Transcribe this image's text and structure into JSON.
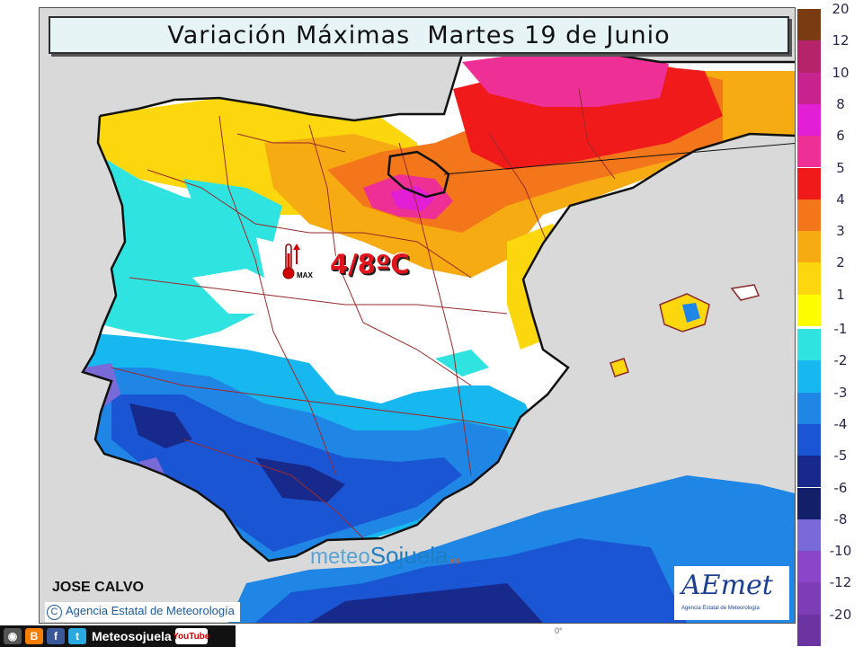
{
  "title": "Variación Máximas  Martes 19 de Junio",
  "anomaly_label": "4/8ºC",
  "thermometer_max_label": "MAX",
  "author": "JOSE CALVO",
  "agency_credit": "Agencia Estatal de Meteorología",
  "copyright_symbol": "C",
  "aemet_logo": {
    "wordmark": "AEmet",
    "caption": "Agencia Estatal de Meteorología"
  },
  "watermark": {
    "part1": "meteo",
    "part2": "Sojuela",
    "suffix": ".es"
  },
  "social_bar": {
    "handle": "Meteosojuela",
    "youtube": "YouTube",
    "icons": [
      "camera-icon",
      "blogger-icon",
      "facebook-icon",
      "twitter-icon",
      "youtube-icon"
    ]
  },
  "degree_mark": "0°",
  "legend": {
    "positive": [
      {
        "label": "20",
        "color": "#7b3b12"
      },
      {
        "label": "12",
        "color": "#b5236a"
      },
      {
        "label": "10",
        "color": "#c8248f"
      },
      {
        "label": "8",
        "color": "#e21fd5"
      },
      {
        "label": "6",
        "color": "#ee2f95"
      },
      {
        "label": "5",
        "color": "#f11a1a"
      },
      {
        "label": "4",
        "color": "#f4761a"
      },
      {
        "label": "3",
        "color": "#f6ab12"
      },
      {
        "label": "2",
        "color": "#fdd70d"
      },
      {
        "label": "1",
        "color": "#fffe00"
      }
    ],
    "negative": [
      {
        "label": "-1",
        "color": "#2fe3e0"
      },
      {
        "label": "-2",
        "color": "#17b7f0"
      },
      {
        "label": "-3",
        "color": "#1f86e6"
      },
      {
        "label": "-4",
        "color": "#1a56d3"
      },
      {
        "label": "-5",
        "color": "#18298c"
      },
      {
        "label": "-6",
        "color": "#141f6a"
      },
      {
        "label": "-8",
        "color": "#7a6ad8"
      },
      {
        "label": "-10",
        "color": "#8a45c8"
      },
      {
        "label": "-12",
        "color": "#7d3db4"
      },
      {
        "label": "-20",
        "color": "#6b34a0"
      }
    ]
  }
}
